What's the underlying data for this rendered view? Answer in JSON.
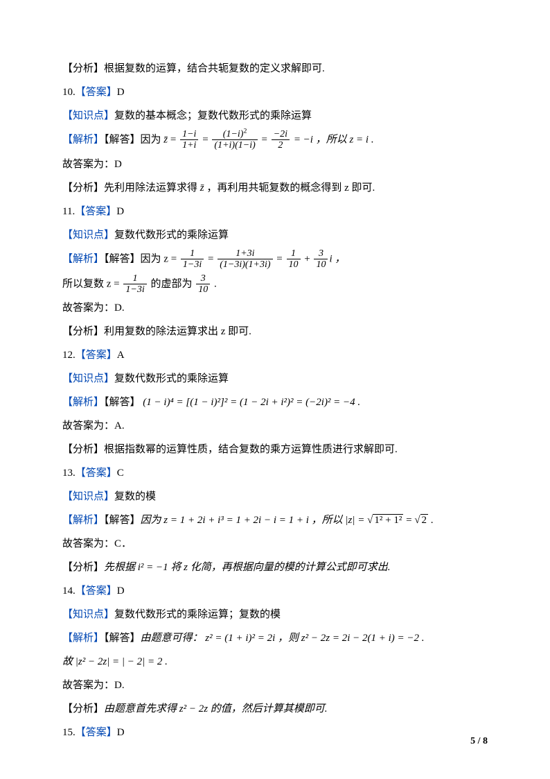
{
  "colors": {
    "blue": "#0047b3",
    "text": "#000000",
    "background": "#ffffff"
  },
  "typography": {
    "body_font": "SimSun",
    "math_font": "Times New Roman",
    "font_size_pt": 11,
    "line_height": 2.0
  },
  "page": {
    "current": "5",
    "total": "8",
    "separator": " / "
  },
  "tags": {
    "analysis": "【分析】",
    "answer": "【答案】",
    "knowledge": "【知识点】",
    "explain": "【解析】",
    "solve": "【解答】"
  },
  "lines": {
    "l01": "根据复数的运算，结合共轭复数的定义求解即可.",
    "l02_num": "10.",
    "l02_ans": "D",
    "l03": "复数的基本概念；复数代数形式的乘除运算",
    "l04_prefix": "因为  ",
    "l04_zbar": "z̄",
    "l04_eq": " = ",
    "l04_f1_num": "1−i",
    "l04_f1_den": "1+i",
    "l04_f2_num": "(1−i)",
    "l04_f2_exp": "2",
    "l04_f2_den": "(1+i)(1−i)",
    "l04_f3_num": "−2i",
    "l04_f3_den": "2",
    "l04_mid": " = −i  ，所以  z = i  .",
    "l05": "故答案为：D",
    "l06_a": "先利用除法运算求得  ",
    "l06_zbar": "z̄",
    "l06_b": "  ，再利用共轭复数的概念得到 z 即可.",
    "l07_num": "11.",
    "l07_ans": "D",
    "l08": "复数代数形式的乘除运算",
    "l09_prefix": "因为  z = ",
    "l09_f1_num": "1",
    "l09_f1_den": "1−3i",
    "l09_f2_num": "1+3i",
    "l09_f2_den": "(1−3i)(1+3i)",
    "l09_f3_num": "1",
    "l09_f3_den": "10",
    "l09_plus": " + ",
    "l09_f4_num": "3",
    "l09_f4_den": "10",
    "l09_suffix": "i  ，",
    "l10_a": "所以复数  z = ",
    "l10_f_num": "1",
    "l10_f_den": "1−3i",
    "l10_b": "  的虚部为  ",
    "l10_g_num": "3",
    "l10_g_den": "10",
    "l10_c": "  .",
    "l11": "故答案为：D.",
    "l12": "利用复数的除法运算求出 z 即可.",
    "l13_num": "12.",
    "l13_ans": "A",
    "l14": "复数代数形式的乘除运算",
    "l15": "  (1 − i)⁴ = [(1 − i)²]² = (1 − 2i + i²)² = (−2i)² = −4  .",
    "l16": "故答案为：A.",
    "l17": "根据指数幂的运算性质，结合复数的乘方运算性质进行求解即可.",
    "l18_num": "13.",
    "l18_ans": "C",
    "l19": "复数的模",
    "l20_a": "因为  z = 1 + 2i + i³ = 1 + 2i − i = 1 + i  ，所以  |z| = ",
    "l20_sqrt1": "1² + 1²",
    "l20_mid": " = ",
    "l20_sqrt2": "2",
    "l20_b": "  .",
    "l21": "故答案为：C．",
    "l22": "先根据  i² = −1  将  z  化简，再根据向量的模的计算公式即可求出.",
    "l23_num": "14.",
    "l23_ans": "D",
    "l24": "复数代数形式的乘除运算；复数的模",
    "l25": "由题意可得：  z² = (1 + i)² = 2i  ，则  z² − 2z = 2i − 2(1 + i) = −2  .",
    "l26": "故  |z² − 2z| = | − 2| = 2  .",
    "l27": "故答案为：D.",
    "l28": "由题意首先求得  z² − 2z  的值，然后计算其模即可.",
    "l29_num": "15.",
    "l29_ans": "D"
  }
}
